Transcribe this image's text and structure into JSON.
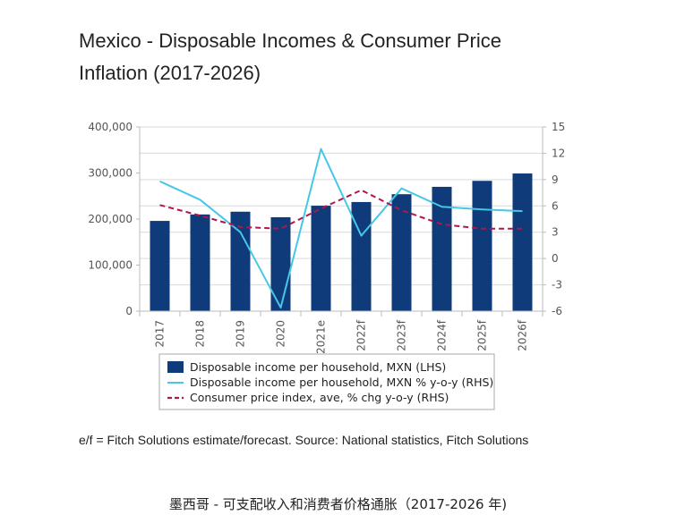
{
  "title_line1": "Mexico - Disposable Incomes & Consumer Price",
  "title_line2": "Inflation (2017-2026)",
  "note_text": "e/f = Fitch Solutions estimate/forecast. Source: National statistics, Fitch Solutions",
  "caption_text": "墨西哥 - 可支配收入和消费者价格通胀（2017-2026 年)",
  "colors": {
    "bar": "#0f3b7a",
    "income_growth": "#45c8e6",
    "cpi": "#b3154a",
    "grid": "#d9d9d9"
  },
  "chart_data": {
    "type": "bar",
    "categories": [
      "2017",
      "2018",
      "2019",
      "2020",
      "2021e",
      "2022f",
      "2023f",
      "2024f",
      "2025f",
      "2026f"
    ],
    "series": [
      {
        "name": "Disposable income per household, MXN (LHS)",
        "type": "bar",
        "axis": "left",
        "values": [
          196000,
          210000,
          216000,
          204000,
          229000,
          237000,
          254000,
          270000,
          283000,
          299000
        ]
      },
      {
        "name": "Disposable income per household, MXN % y-o-y (RHS)",
        "type": "line",
        "axis": "right",
        "values": [
          8.8,
          6.7,
          3.0,
          -5.6,
          12.5,
          2.6,
          8.0,
          5.9,
          5.6,
          5.4
        ]
      },
      {
        "name": "Consumer price index, ave, % chg y-o-y (RHS)",
        "type": "line",
        "axis": "right",
        "dashed": true,
        "values": [
          6.1,
          4.9,
          3.6,
          3.4,
          5.7,
          7.8,
          5.5,
          3.9,
          3.4,
          3.4
        ]
      }
    ],
    "y_left": {
      "ylim": [
        0,
        400000
      ],
      "ticks": [
        "0",
        "100,000",
        "200,000",
        "300,000",
        "400,000"
      ]
    },
    "y_right": {
      "ylim": [
        -6,
        15
      ],
      "ticks": [
        "-6",
        "-3",
        "0",
        "3",
        "6",
        "9",
        "12",
        "15"
      ]
    },
    "grid": true,
    "legend": "bottom"
  }
}
